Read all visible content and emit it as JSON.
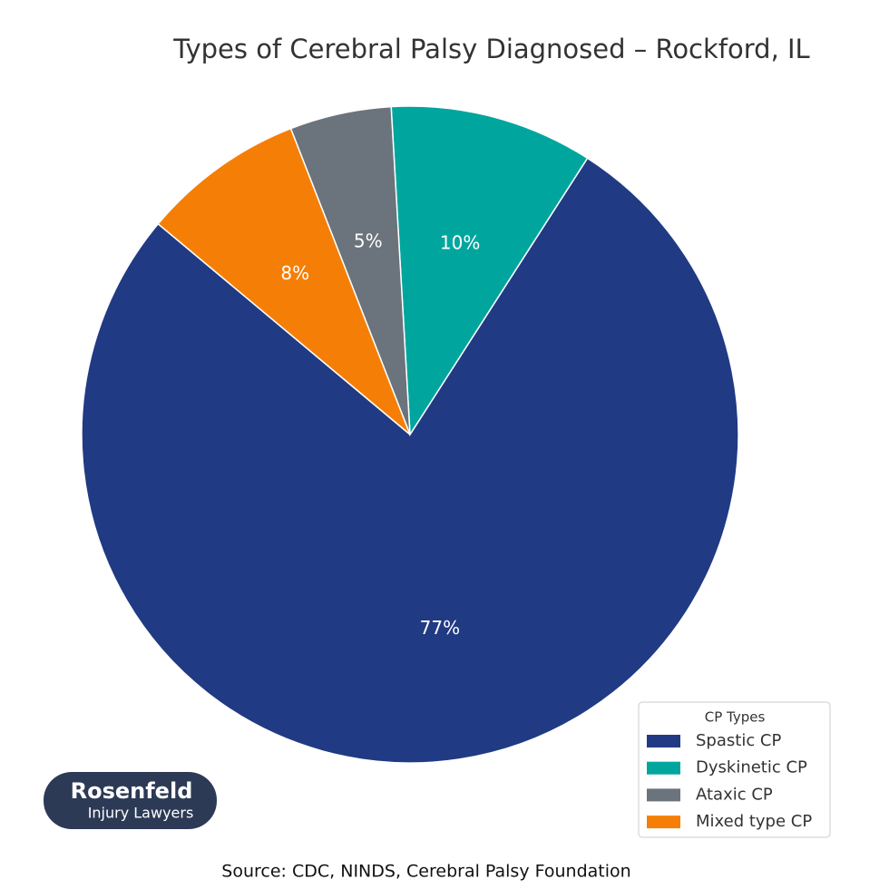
{
  "chart_data": {
    "type": "pie",
    "title": "Types of Cerebral Palsy Diagnosed – Rockford, IL",
    "categories": [
      "Spastic CP",
      "Dyskinetic CP",
      "Ataxic CP",
      "Mixed type CP"
    ],
    "values": [
      77,
      10,
      5,
      8
    ],
    "value_labels": [
      "77%",
      "10%",
      "5%",
      "8%"
    ],
    "colors": [
      "#203a84",
      "#00a69e",
      "#6b737c",
      "#f57f06"
    ],
    "legend_title": "CP Types",
    "legend": "lower right",
    "source": "Source: CDC, NINDS, Cerebral Palsy Foundation"
  },
  "logo": {
    "name": "Rosenfeld",
    "tagline": "Injury Lawyers"
  }
}
